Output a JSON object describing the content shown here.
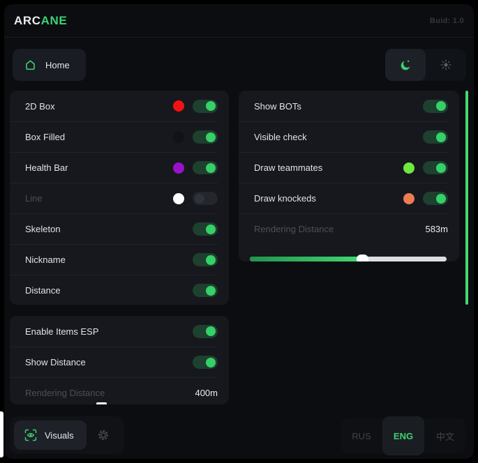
{
  "app": {
    "brand_primary": "ARC",
    "brand_accent": "ANE",
    "build_label": "Buid: 1.0"
  },
  "nav": {
    "home_label": "Home"
  },
  "theme": {
    "selected": "dark",
    "moon_icon": "moon-icon",
    "sun_icon": "sun-icon"
  },
  "esp_panel": {
    "rows": [
      {
        "label": "2D Box",
        "dot": "#f31212",
        "toggle": "on"
      },
      {
        "label": "Box Filled",
        "dot": "#101216",
        "toggle": "on"
      },
      {
        "label": "Health Bar",
        "dot": "#9b10c9",
        "toggle": "on"
      },
      {
        "label": "Line",
        "dot": "#ffffff",
        "toggle": "off",
        "muted": "true"
      },
      {
        "label": "Skeleton",
        "toggle": "on"
      },
      {
        "label": "Nickname",
        "toggle": "on"
      },
      {
        "label": "Distance",
        "toggle": "on"
      }
    ]
  },
  "items_panel": {
    "rows": [
      {
        "label": "Enable Items ESP",
        "toggle": "on"
      },
      {
        "label": "Show Distance",
        "toggle": "on"
      }
    ],
    "distance": {
      "label": "Rendering Distance",
      "value": "400m"
    }
  },
  "players_panel": {
    "rows": [
      {
        "label": "Show BOTs",
        "toggle": "on"
      },
      {
        "label": "Visible check",
        "toggle": "on"
      },
      {
        "label": "Draw teammates",
        "dot": "#6fe93e",
        "toggle": "on"
      },
      {
        "label": "Draw knockeds",
        "dot": "#ef7b53",
        "toggle": "on"
      }
    ],
    "distance": {
      "label": "Rendering Distance",
      "value": "583m"
    },
    "slider": {
      "percent": 57
    }
  },
  "footer": {
    "visuals_label": "Visuals",
    "languages": [
      {
        "label": "RUS",
        "active": "false"
      },
      {
        "label": "ENG",
        "active": "true"
      },
      {
        "label": "中文",
        "active": "false"
      }
    ]
  },
  "colors": {
    "accent_green": "#3ecf71",
    "scrollbar_green": "#42d976",
    "toggle_on_knob": "#35d068",
    "window_bg": "#0b0d10",
    "card_bg": "#16181d"
  }
}
